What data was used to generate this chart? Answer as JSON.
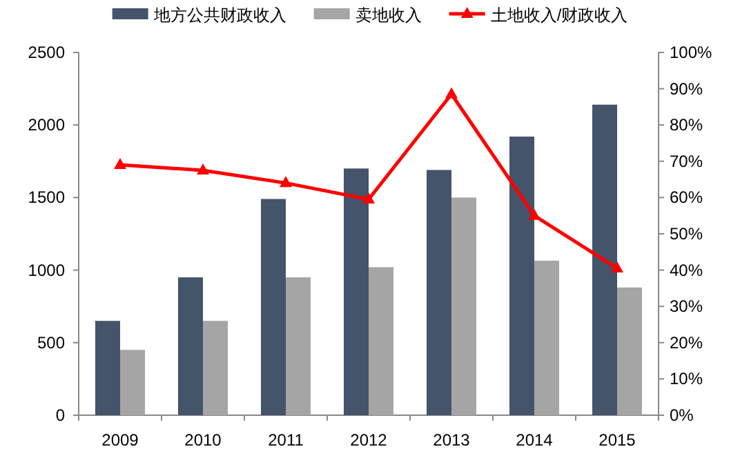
{
  "chart_data": {
    "type": "bar",
    "categories": [
      "2009",
      "2010",
      "2011",
      "2012",
      "2013",
      "2014",
      "2015"
    ],
    "series": [
      {
        "name": "地方公共财政收入",
        "color": "#44546a",
        "values": [
          650,
          950,
          1490,
          1700,
          1690,
          1920,
          2140
        ]
      },
      {
        "name": "卖地收入",
        "color": "#a5a5a5",
        "values": [
          450,
          650,
          950,
          1020,
          1500,
          1065,
          880
        ]
      },
      {
        "name": "土地收入/财政收入",
        "type": "line",
        "axis": "y2",
        "color": "#ff0000",
        "marker": "triangle",
        "values": [
          69,
          67.5,
          64,
          59.5,
          88.5,
          55,
          40.5
        ]
      }
    ],
    "ylim": [
      0,
      2500
    ],
    "yticks": [
      0,
      500,
      1000,
      1500,
      2000,
      2500
    ],
    "y2lim": [
      0,
      100
    ],
    "y2ticks": [
      {
        "value": 0,
        "label": "0%"
      },
      {
        "value": 10,
        "label": "10%"
      },
      {
        "value": 20,
        "label": "20%"
      },
      {
        "value": 30,
        "label": "30%"
      },
      {
        "value": 40,
        "label": "40%"
      },
      {
        "value": 50,
        "label": "50%"
      },
      {
        "value": 60,
        "label": "60%"
      },
      {
        "value": 70,
        "label": "70%"
      },
      {
        "value": 80,
        "label": "80%"
      },
      {
        "value": 90,
        "label": "90%"
      },
      {
        "value": 100,
        "label": "100%"
      }
    ],
    "legend": "top",
    "grid": false
  }
}
